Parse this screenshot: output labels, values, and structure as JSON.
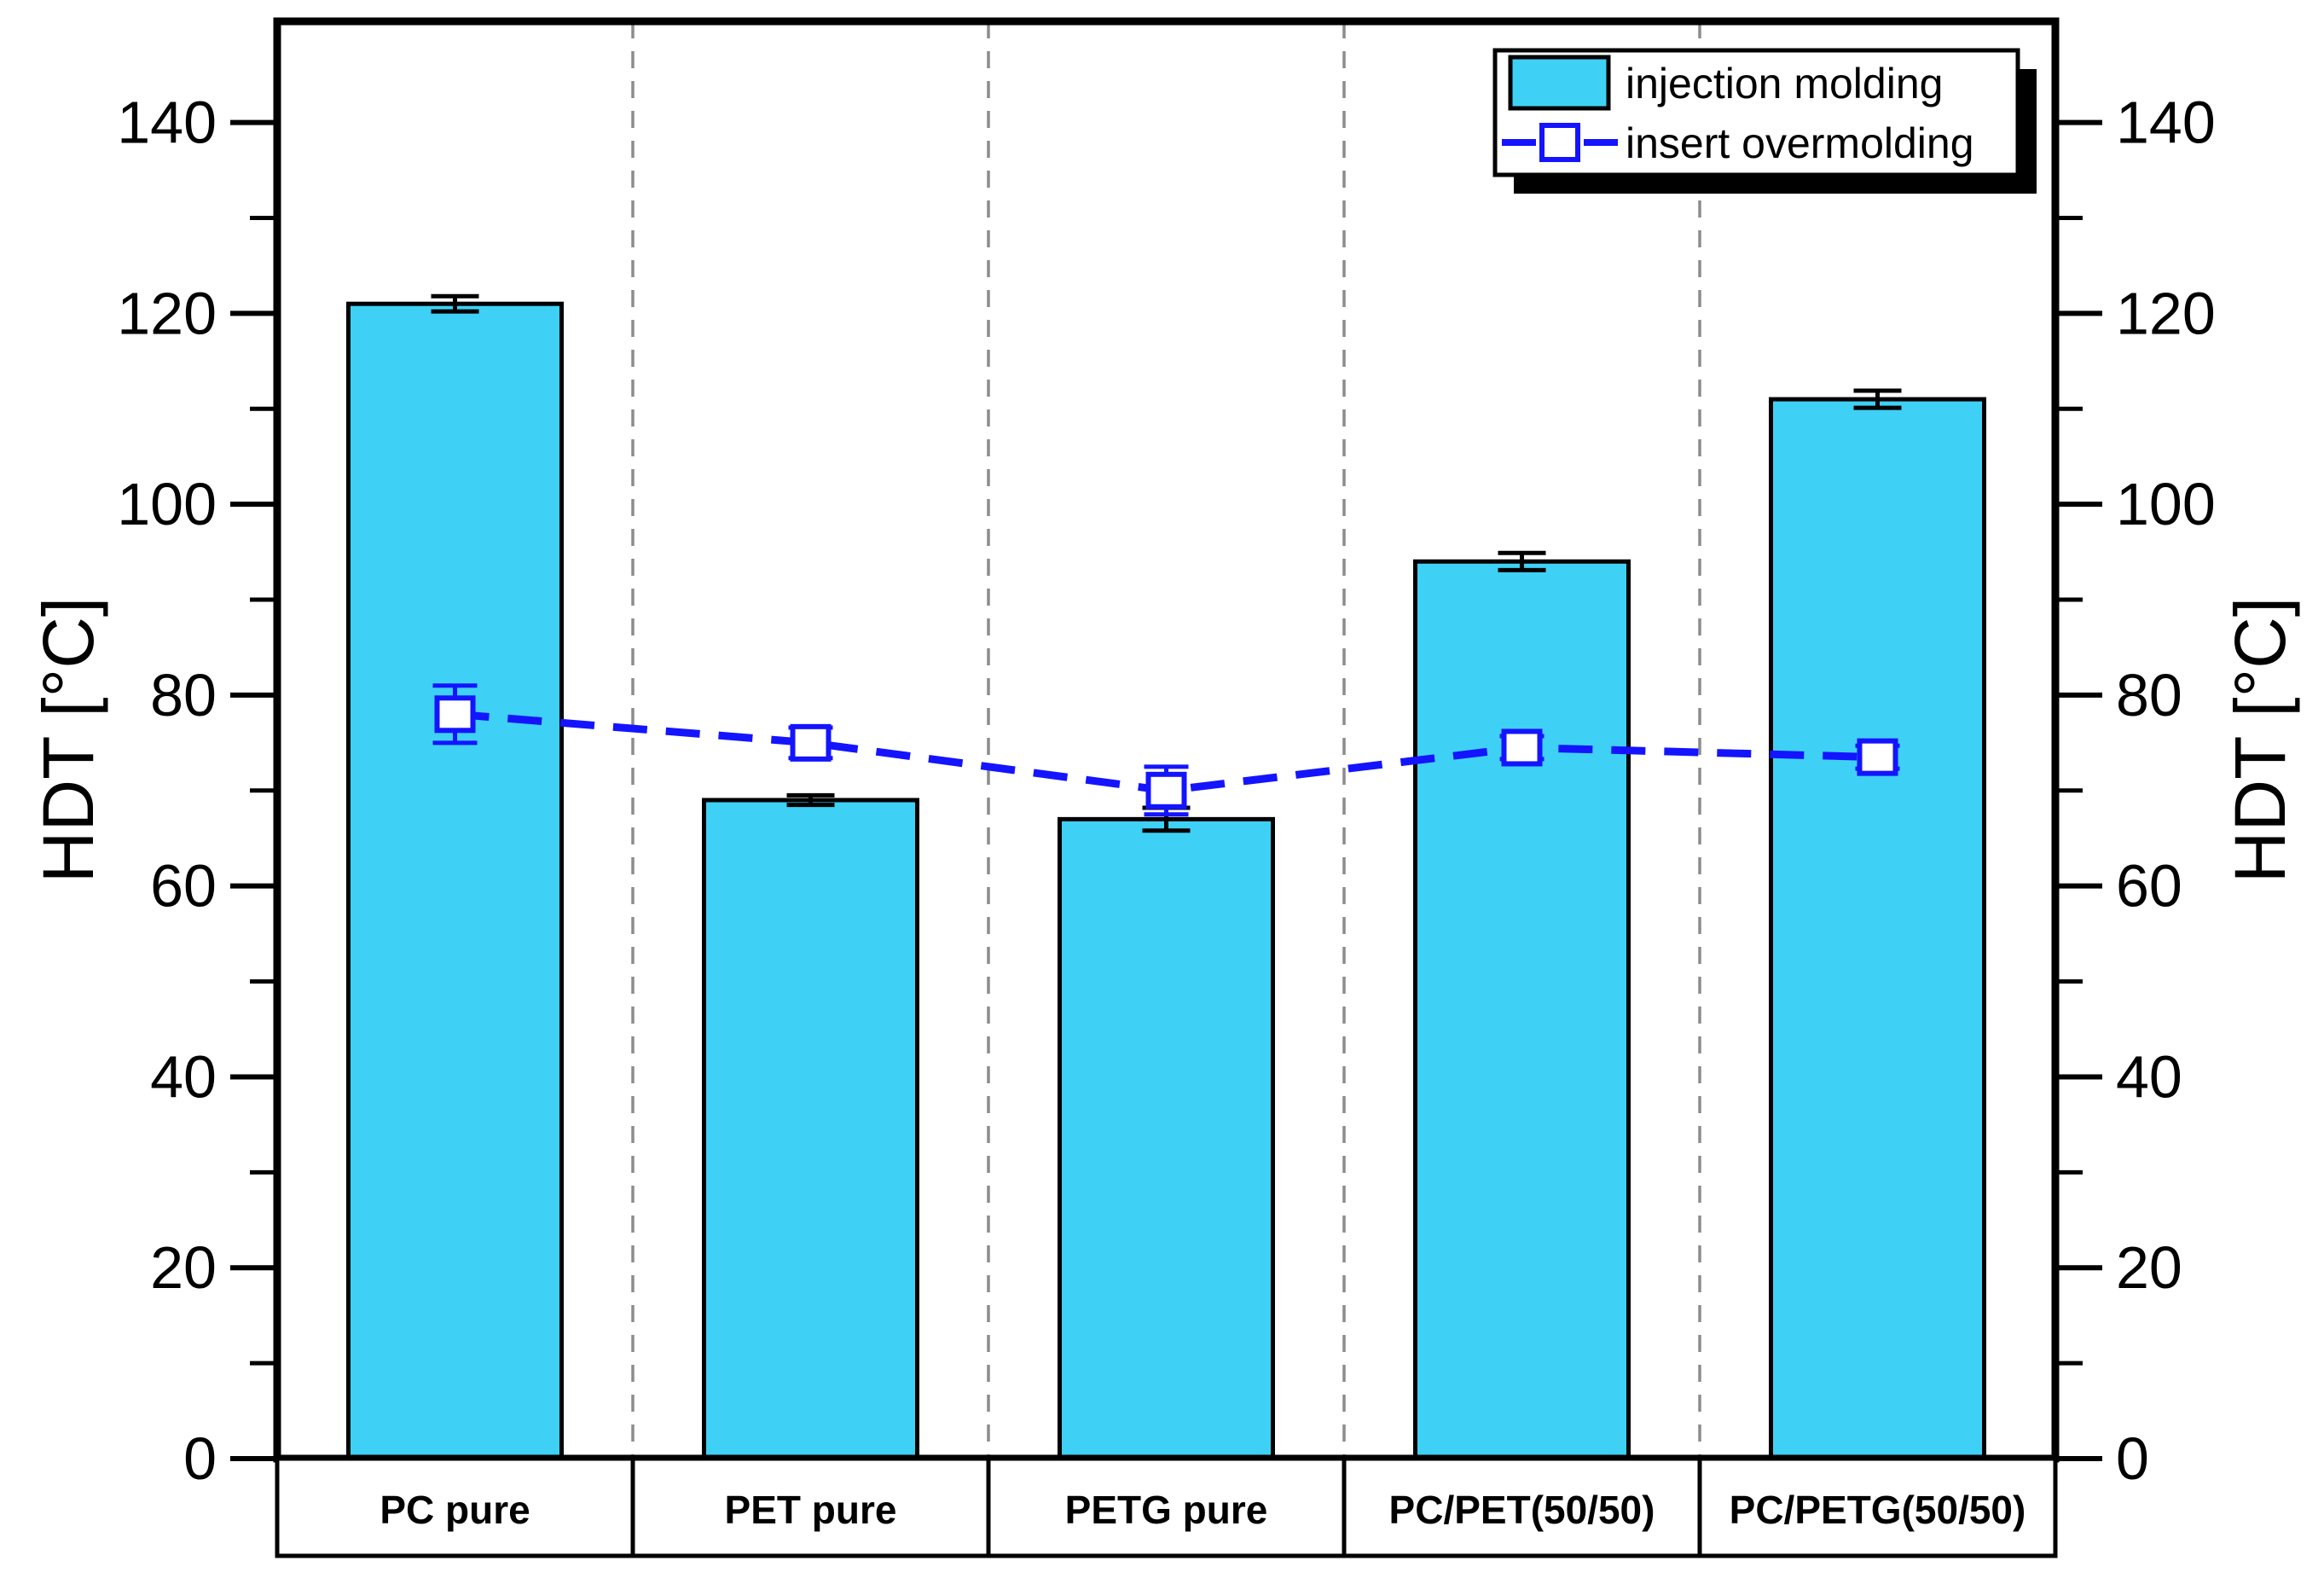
{
  "chart_data": {
    "type": "bar",
    "subtype": "bar-with-line-overlay",
    "categories": [
      "PC pure",
      "PET pure",
      "PETG pure",
      "PC/PET(50/50)",
      "PC/PETG(50/50)"
    ],
    "series": [
      {
        "name": "injection molding",
        "type": "bar",
        "values": [
          121,
          69,
          67,
          94,
          111
        ],
        "error_bars": [
          0.8,
          0.5,
          1.2,
          0.9,
          0.9
        ],
        "color": "#3ED1F5",
        "border_color": "#000000",
        "error_color": "#000000"
      },
      {
        "name": "insert overmolding",
        "type": "line",
        "marker": "open-square",
        "line_style": "dashed",
        "values": [
          78,
          75,
          70,
          74.5,
          73.5
        ],
        "error_bars": [
          3,
          1.6,
          2.5,
          1.2,
          1.2
        ],
        "color": "#1414FF",
        "marker_fill": "#FFFFFF",
        "error_color": "#1414FF"
      }
    ],
    "ylabel_left": "HDT [°C]",
    "ylabel_right": "HDT [°C]",
    "ytick_values": [
      0,
      20,
      40,
      60,
      80,
      100,
      120,
      140
    ],
    "ytick_labels": [
      "0",
      "20",
      "40",
      "60",
      "80",
      "100",
      "120",
      "140"
    ],
    "minor_tick_values": [
      10,
      30,
      50,
      70,
      90,
      110,
      130
    ],
    "ylim": [
      0,
      150.6
    ],
    "grid": "vertical-dashed-category-separators",
    "separator_color": "#8C8C8C",
    "axis_color": "#000000",
    "background_color": "#FFFFFF",
    "legend": {
      "position": "top-right",
      "border_color": "#000000",
      "shadow_color": "#000000",
      "items": [
        "injection molding",
        "insert overmolding"
      ]
    }
  }
}
